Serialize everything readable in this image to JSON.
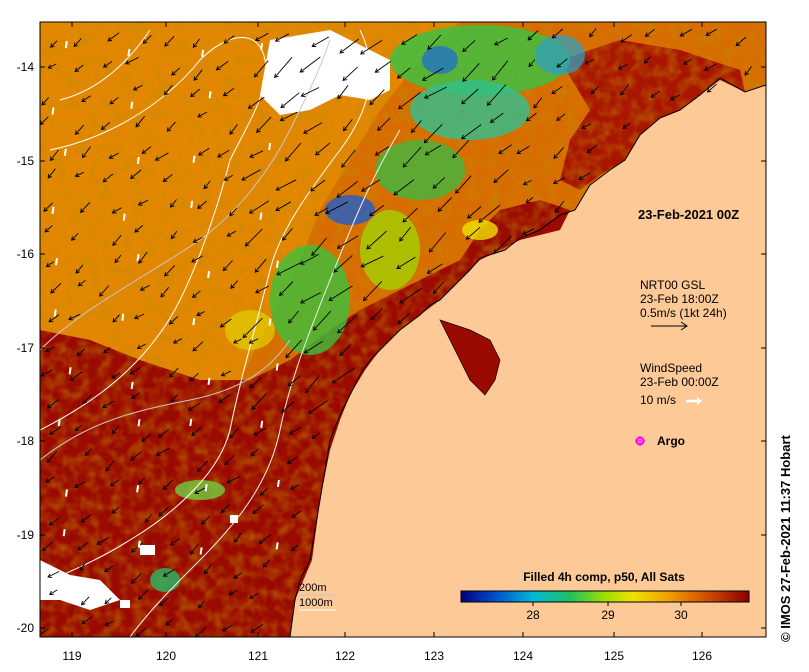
{
  "map": {
    "x_ticks": [
      "119",
      "120",
      "121",
      "122",
      "123",
      "124",
      "125",
      "126"
    ],
    "y_ticks": [
      "-14",
      "-15",
      "-16",
      "-17",
      "-18",
      "-19",
      "-20"
    ],
    "timestamp": "23-Feb-2021 00Z",
    "current_legend": {
      "line1": "NRT00 GSL",
      "line2": "23-Feb 18:00Z",
      "line3": "0.5m/s (1kt 24h)"
    },
    "wind_legend": {
      "line1": "WindSpeed",
      "line2": "23-Feb 00:00Z",
      "line3": "10 m/s"
    },
    "argo_label": "Argo",
    "contours": {
      "c200": "200m",
      "c1000": "1000m"
    },
    "colorbar": {
      "title": "Filled 4h comp, p50, All Sats",
      "ticks": [
        "28",
        "29",
        "30"
      ]
    },
    "credit": "IMOS 27-Feb-2021 11:37 Hobart",
    "colors": {
      "land": "#fdc997",
      "hot": "#9a0a00",
      "warm": "#d96a00",
      "mid": "#f0a000",
      "cool": "#3cc03c",
      "argo": "#ff00ff"
    }
  }
}
